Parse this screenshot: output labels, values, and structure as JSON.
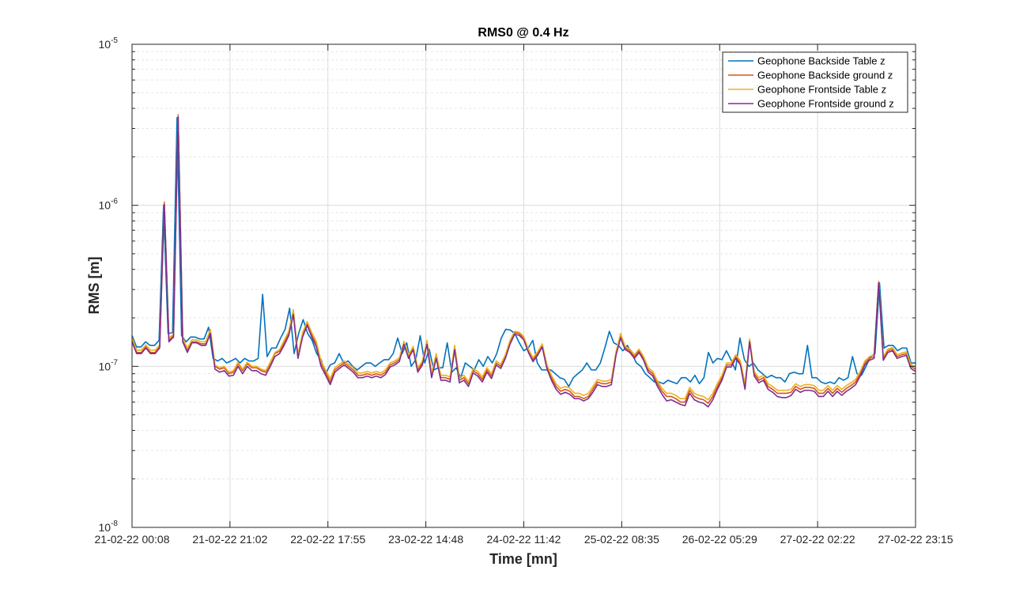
{
  "chart_data": {
    "type": "line",
    "title": "RMS0 @ 0.4 Hz",
    "xlabel": "Time [mn]",
    "ylabel": "RMS [m]",
    "yscale": "log",
    "ylim": [
      1e-08,
      1e-05
    ],
    "ytick_labels": [
      {
        "base": "10",
        "exp": "-8"
      },
      {
        "base": "10",
        "exp": "-7"
      },
      {
        "base": "10",
        "exp": "-6"
      },
      {
        "base": "10",
        "exp": "-5"
      }
    ],
    "xlim": [
      "21-02-22 00:08",
      "27-02-22 23:15"
    ],
    "xtick_labels": [
      "21-02-22 00:08",
      "21-02-22 21:02",
      "22-02-22 17:55",
      "23-02-22 14:48",
      "24-02-22 11:42",
      "25-02-22 08:35",
      "26-02-22 05:29",
      "27-02-22 02:22",
      "27-02-22 23:15"
    ],
    "grid": true,
    "legend_position": "top-right",
    "sample_interval_minutes": 60,
    "series": [
      {
        "name": "Geophone Backside Table z",
        "color": "#0072BD",
        "values": [
          1.55e-07,
          1.32e-07,
          1.32e-07,
          1.42e-07,
          1.35e-07,
          1.35e-07,
          1.45e-07,
          1e-06,
          1.6e-07,
          1.62e-07,
          3.5e-06,
          1.55e-07,
          1.42e-07,
          1.52e-07,
          1.52e-07,
          1.48e-07,
          1.48e-07,
          1.75e-07,
          1.12e-07,
          1.08e-07,
          1.12e-07,
          1.05e-07,
          1.08e-07,
          1.12e-07,
          1.05e-07,
          1.12e-07,
          1.08e-07,
          1.08e-07,
          1.12e-07,
          2.8e-07,
          1.15e-07,
          1.3e-07,
          1.3e-07,
          1.5e-07,
          1.7e-07,
          2.3e-07,
          1.2e-07,
          1.6e-07,
          1.95e-07,
          1.6e-07,
          1.45e-07,
          1.2e-07,
          1.1e-07,
          9e-08,
          1.02e-07,
          1.05e-07,
          1.2e-07,
          1.05e-07,
          1.08e-07,
          1e-07,
          9.5e-08,
          1e-07,
          1.05e-07,
          1.05e-07,
          1e-07,
          1.05e-07,
          1.1e-07,
          1.1e-07,
          1.2e-07,
          1.5e-07,
          1.2e-07,
          1.4e-07,
          1e-07,
          1.1e-07,
          1.55e-07,
          1.05e-07,
          1.28e-07,
          9.5e-08,
          9.8e-08,
          9.8e-08,
          1.4e-07,
          9.2e-08,
          9.8e-08,
          8.5e-08,
          1.05e-07,
          1e-07,
          9.5e-08,
          1.1e-07,
          1e-07,
          1.15e-07,
          1.05e-07,
          1.2e-07,
          1.5e-07,
          1.7e-07,
          1.68e-07,
          1.6e-07,
          1.4e-07,
          1.25e-07,
          1.3e-07,
          1.45e-07,
          1.05e-07,
          9.5e-08,
          9.5e-08,
          9.5e-08,
          9e-08,
          8.5e-08,
          8.3e-08,
          7.5e-08,
          8.5e-08,
          9e-08,
          9.5e-08,
          1.05e-07,
          9.5e-08,
          9.5e-08,
          1.05e-07,
          1.3e-07,
          1.65e-07,
          1.4e-07,
          1.35e-07,
          1.25e-07,
          1.35e-07,
          1.2e-07,
          1.05e-07,
          1e-07,
          9e-08,
          8.5e-08,
          8e-08,
          8e-08,
          7.8e-08,
          8.2e-08,
          8e-08,
          7.8e-08,
          8.5e-08,
          8.5e-08,
          8e-08,
          8.8e-08,
          7.8e-08,
          8.5e-08,
          1.22e-07,
          1.05e-07,
          1.12e-07,
          1.1e-07,
          1.25e-07,
          1.1e-07,
          9.5e-08,
          1.5e-07,
          1.1e-07,
          1e-07,
          1.05e-07,
          9.5e-08,
          9e-08,
          8.5e-08,
          8.8e-08,
          8.5e-08,
          8.5e-08,
          8e-08,
          9e-08,
          9.2e-08,
          9e-08,
          9e-08,
          1.35e-07,
          8.5e-08,
          8.5e-08,
          8e-08,
          7.8e-08,
          8e-08,
          7.8e-08,
          8.5e-08,
          8.2e-08,
          8.5e-08,
          1.15e-07,
          9e-08,
          8.8e-08,
          1e-07,
          1.15e-07,
          1.2e-07,
          3.3e-07,
          1.3e-07,
          1.35e-07,
          1.35e-07,
          1.25e-07,
          1.3e-07,
          1.3e-07,
          1.05e-07,
          1.05e-07
        ]
      },
      {
        "name": "Geophone Backside ground z",
        "color": "#D95319",
        "values": [
          1.45e-07,
          1.22e-07,
          1.22e-07,
          1.32e-07,
          1.22e-07,
          1.22e-07,
          1.32e-07,
          1.05e-06,
          1.45e-07,
          1.55e-07,
          3.65e-06,
          1.45e-07,
          1.25e-07,
          1.42e-07,
          1.42e-07,
          1.38e-07,
          1.38e-07,
          1.65e-07,
          1e-07,
          9.6e-08,
          9.8e-08,
          9e-08,
          9.2e-08,
          1.04e-07,
          9.4e-08,
          1.04e-07,
          9.8e-08,
          9.8e-08,
          9.4e-08,
          9.2e-08,
          1.04e-07,
          1.2e-07,
          1.24e-07,
          1.4e-07,
          1.6e-07,
          2.2e-07,
          1.15e-07,
          1.58e-07,
          1.85e-07,
          1.58e-07,
          1.38e-07,
          1.05e-07,
          9.2e-08,
          8e-08,
          9.5e-08,
          1e-07,
          1.05e-07,
          1e-07,
          9.5e-08,
          8.8e-08,
          8.8e-08,
          9e-08,
          8.8e-08,
          9e-08,
          8.8e-08,
          9.2e-08,
          1.02e-07,
          1.05e-07,
          1.1e-07,
          1.4e-07,
          1.15e-07,
          1.3e-07,
          9.5e-08,
          1.05e-07,
          1.4e-07,
          8.8e-08,
          1.15e-07,
          8.5e-08,
          8.5e-08,
          8.3e-08,
          1.3e-07,
          8.2e-08,
          8.5e-08,
          7.8e-08,
          9.4e-08,
          9e-08,
          8.3e-08,
          9.5e-08,
          8.7e-08,
          1.05e-07,
          1e-07,
          1.15e-07,
          1.4e-07,
          1.62e-07,
          1.6e-07,
          1.5e-07,
          1.25e-07,
          1.1e-07,
          1.2e-07,
          1.35e-07,
          1e-07,
          8.5e-08,
          7.5e-08,
          7e-08,
          7.2e-08,
          7e-08,
          6.5e-08,
          6.5e-08,
          6.3e-08,
          6.5e-08,
          7.2e-08,
          8e-08,
          7.8e-08,
          7.8e-08,
          8e-08,
          1.2e-07,
          1.55e-07,
          1.3e-07,
          1.25e-07,
          1.15e-07,
          1.25e-07,
          1.12e-07,
          9.5e-08,
          9e-08,
          7.8e-08,
          7e-08,
          6.5e-08,
          6.5e-08,
          6.3e-08,
          6e-08,
          6e-08,
          7.1e-08,
          6.5e-08,
          6.3e-08,
          6.2e-08,
          5.9e-08,
          6.5e-08,
          7.5e-08,
          8.5e-08,
          1.02e-07,
          1.02e-07,
          1.15e-07,
          1.05e-07,
          7.5e-08,
          1.45e-07,
          9e-08,
          8.2e-08,
          8.5e-08,
          7.5e-08,
          7.2e-08,
          6.8e-08,
          6.8e-08,
          6.8e-08,
          6.9e-08,
          7.5e-08,
          7.2e-08,
          7.4e-08,
          7.4e-08,
          7.3e-08,
          6.8e-08,
          6.8e-08,
          7.3e-08,
          6.8e-08,
          7.3e-08,
          6.9e-08,
          7.3e-08,
          7.6e-08,
          8e-08,
          9e-08,
          1.05e-07,
          1.12e-07,
          1.15e-07,
          3.35e-07,
          1.12e-07,
          1.25e-07,
          1.28e-07,
          1.15e-07,
          1.18e-07,
          1.2e-07,
          1e-07,
          9.6e-08
        ]
      },
      {
        "name": "Geophone Frontside Table z",
        "color": "#EDB120",
        "values": [
          1.5e-07,
          1.26e-07,
          1.26e-07,
          1.36e-07,
          1.26e-07,
          1.26e-07,
          1.36e-07,
          1.04e-06,
          1.5e-07,
          1.58e-07,
          3.6e-06,
          1.5e-07,
          1.3e-07,
          1.46e-07,
          1.46e-07,
          1.42e-07,
          1.42e-07,
          1.7e-07,
          1.02e-07,
          9.8e-08,
          1e-07,
          9.2e-08,
          9.4e-08,
          1.06e-07,
          9.6e-08,
          1.06e-07,
          1e-07,
          1e-07,
          9.6e-08,
          9.4e-08,
          1.06e-07,
          1.22e-07,
          1.27e-07,
          1.45e-07,
          1.65e-07,
          2.25e-07,
          1.18e-07,
          1.62e-07,
          1.9e-07,
          1.62e-07,
          1.42e-07,
          1.08e-07,
          9.5e-08,
          8.4e-08,
          9.8e-08,
          1.03e-07,
          1.08e-07,
          1.03e-07,
          9.8e-08,
          9.1e-08,
          9.1e-08,
          9.3e-08,
          9.1e-08,
          9.3e-08,
          9.1e-08,
          9.5e-08,
          1.05e-07,
          1.08e-07,
          1.13e-07,
          1.43e-07,
          1.18e-07,
          1.33e-07,
          9.8e-08,
          1.08e-07,
          1.45e-07,
          9.1e-08,
          1.2e-07,
          8.8e-08,
          8.8e-08,
          8.6e-08,
          1.35e-07,
          8.5e-08,
          8.8e-08,
          8e-08,
          9.7e-08,
          9.3e-08,
          8.6e-08,
          9.8e-08,
          9e-08,
          1.08e-07,
          1.03e-07,
          1.18e-07,
          1.45e-07,
          1.65e-07,
          1.63e-07,
          1.53e-07,
          1.28e-07,
          1.13e-07,
          1.23e-07,
          1.38e-07,
          1.03e-07,
          8.8e-08,
          7.8e-08,
          7.3e-08,
          7.5e-08,
          7.3e-08,
          6.8e-08,
          6.8e-08,
          6.6e-08,
          6.8e-08,
          7.5e-08,
          8.3e-08,
          8.1e-08,
          8.1e-08,
          8.3e-08,
          1.23e-07,
          1.6e-07,
          1.33e-07,
          1.28e-07,
          1.18e-07,
          1.28e-07,
          1.15e-07,
          9.8e-08,
          9.3e-08,
          8.1e-08,
          7.3e-08,
          6.8e-08,
          6.8e-08,
          6.6e-08,
          6.3e-08,
          6.3e-08,
          7.4e-08,
          6.8e-08,
          6.6e-08,
          6.5e-08,
          6.2e-08,
          6.8e-08,
          7.8e-08,
          8.8e-08,
          1.05e-07,
          1.05e-07,
          1.18e-07,
          1.08e-07,
          7.8e-08,
          1.48e-07,
          9.3e-08,
          8.5e-08,
          8.8e-08,
          7.8e-08,
          7.5e-08,
          7.1e-08,
          7.1e-08,
          7.1e-08,
          7.2e-08,
          7.8e-08,
          7.5e-08,
          7.7e-08,
          7.7e-08,
          7.6e-08,
          7.1e-08,
          7.1e-08,
          7.6e-08,
          7.1e-08,
          7.6e-08,
          7.2e-08,
          7.6e-08,
          7.9e-08,
          8.3e-08,
          9.3e-08,
          1.08e-07,
          1.15e-07,
          1.18e-07,
          3.38e-07,
          1.15e-07,
          1.28e-07,
          1.31e-07,
          1.18e-07,
          1.21e-07,
          1.23e-07,
          1.03e-07,
          9.9e-08
        ]
      },
      {
        "name": "Geophone Frontside ground z",
        "color": "#7E2F8E",
        "values": [
          1.42e-07,
          1.2e-07,
          1.2e-07,
          1.3e-07,
          1.2e-07,
          1.2e-07,
          1.3e-07,
          1.02e-06,
          1.42e-07,
          1.52e-07,
          3.55e-06,
          1.42e-07,
          1.22e-07,
          1.4e-07,
          1.4e-07,
          1.35e-07,
          1.35e-07,
          1.6e-07,
          9.6e-08,
          9.2e-08,
          9.4e-08,
          8.7e-08,
          8.8e-08,
          1e-07,
          9e-08,
          1e-07,
          9.4e-08,
          9.4e-08,
          9e-08,
          8.8e-08,
          1e-07,
          1.15e-07,
          1.2e-07,
          1.35e-07,
          1.55e-07,
          2.1e-07,
          1.12e-07,
          1.52e-07,
          1.8e-07,
          1.52e-07,
          1.32e-07,
          1e-07,
          8.8e-08,
          7.7e-08,
          9.2e-08,
          9.7e-08,
          1.02e-07,
          9.7e-08,
          9.2e-08,
          8.5e-08,
          8.5e-08,
          8.7e-08,
          8.5e-08,
          8.7e-08,
          8.5e-08,
          8.9e-08,
          9.9e-08,
          1.02e-07,
          1.07e-07,
          1.37e-07,
          1.12e-07,
          1.27e-07,
          9.2e-08,
          1.02e-07,
          1.37e-07,
          8.5e-08,
          1.12e-07,
          8.2e-08,
          8.2e-08,
          8e-08,
          1.27e-07,
          7.9e-08,
          8.2e-08,
          7.5e-08,
          9.1e-08,
          8.7e-08,
          8e-08,
          9.2e-08,
          8.4e-08,
          1.02e-07,
          9.7e-08,
          1.12e-07,
          1.37e-07,
          1.58e-07,
          1.56e-07,
          1.46e-07,
          1.22e-07,
          1.07e-07,
          1.17e-07,
          1.32e-07,
          9.7e-08,
          8.2e-08,
          7.2e-08,
          6.7e-08,
          6.9e-08,
          6.7e-08,
          6.3e-08,
          6.3e-08,
          6.1e-08,
          6.3e-08,
          6.9e-08,
          7.7e-08,
          7.5e-08,
          7.5e-08,
          7.7e-08,
          1.17e-07,
          1.5e-07,
          1.27e-07,
          1.22e-07,
          1.12e-07,
          1.22e-07,
          1.09e-07,
          9.2e-08,
          8.7e-08,
          7.5e-08,
          6.7e-08,
          6.1e-08,
          6.2e-08,
          6e-08,
          5.8e-08,
          5.7e-08,
          6.8e-08,
          6.2e-08,
          6e-08,
          5.9e-08,
          5.6e-08,
          6.2e-08,
          7.2e-08,
          8.2e-08,
          9.9e-08,
          9.9e-08,
          1.12e-07,
          1.02e-07,
          7.2e-08,
          1.42e-07,
          8.7e-08,
          7.9e-08,
          8.2e-08,
          7.2e-08,
          6.9e-08,
          6.5e-08,
          6.4e-08,
          6.4e-08,
          6.6e-08,
          7.2e-08,
          6.9e-08,
          7.1e-08,
          7.1e-08,
          7e-08,
          6.5e-08,
          6.5e-08,
          7e-08,
          6.5e-08,
          7e-08,
          6.6e-08,
          7e-08,
          7.3e-08,
          7.7e-08,
          8.7e-08,
          1.02e-07,
          1.09e-07,
          1.12e-07,
          3.3e-07,
          1.09e-07,
          1.22e-07,
          1.25e-07,
          1.12e-07,
          1.15e-07,
          1.17e-07,
          9.7e-08,
          9.3e-08
        ]
      }
    ]
  }
}
